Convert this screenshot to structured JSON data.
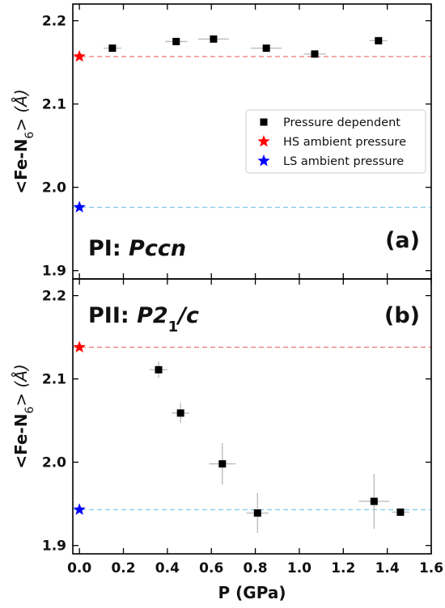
{
  "chart_data": [
    {
      "id": "a",
      "type": "scatter",
      "panel_label": "(a)",
      "phase_label": {
        "prefix": "PI: ",
        "space_group": "Pccn"
      },
      "ylabel": "<Fe-N6> (Å)",
      "ylim": [
        1.89,
        2.22
      ],
      "yticks": [
        1.9,
        2.0,
        2.1,
        2.2
      ],
      "ytick_labels": [
        "1.9",
        "2.0",
        "2.1",
        "2.2"
      ],
      "xlim": [
        -0.03,
        1.6
      ],
      "show_x_tick_labels": false,
      "series": [
        {
          "name": "Pressure dependent",
          "marker": "square",
          "color": "#000000",
          "points": [
            {
              "x": 0.15,
              "y": 2.167,
              "xerr": 0.04,
              "yerr": 0.004
            },
            {
              "x": 0.44,
              "y": 2.175,
              "xerr": 0.05,
              "yerr": 0.003
            },
            {
              "x": 0.61,
              "y": 2.178,
              "xerr": 0.07,
              "yerr": 0.003
            },
            {
              "x": 0.85,
              "y": 2.167,
              "xerr": 0.07,
              "yerr": 0.003
            },
            {
              "x": 1.07,
              "y": 2.16,
              "xerr": 0.05,
              "yerr": 0.004
            },
            {
              "x": 1.36,
              "y": 2.176,
              "xerr": 0.04,
              "yerr": 0.004
            }
          ]
        },
        {
          "name": "HS ambient pressure",
          "marker": "star",
          "color": "#ff0000",
          "x": 0.0,
          "y": 2.157,
          "line_color": "#f08080"
        },
        {
          "name": "LS ambient pressure",
          "marker": "star",
          "color": "#0000ff",
          "x": 0.0,
          "y": 1.976,
          "line_color": "#87ceeb"
        }
      ],
      "legend": {
        "position": "center-right",
        "entries": [
          "Pressure dependent",
          "HS ambient pressure",
          "LS ambient pressure"
        ]
      }
    },
    {
      "id": "b",
      "type": "scatter",
      "panel_label": "(b)",
      "phase_label": {
        "prefix": "PII: ",
        "space_group": "P2",
        "subscript": "1",
        "suffix": "/c"
      },
      "ylabel": "<Fe-N6> (Å)",
      "ylim": [
        1.89,
        2.22
      ],
      "yticks": [
        1.9,
        2.0,
        2.1,
        2.2
      ],
      "ytick_labels": [
        "1.9",
        "2.0",
        "2.1",
        "2.2"
      ],
      "xlabel": "P (GPa)",
      "xlim": [
        -0.03,
        1.6
      ],
      "xticks": [
        0.0,
        0.2,
        0.4,
        0.6,
        0.8,
        1.0,
        1.2,
        1.4,
        1.6
      ],
      "xtick_labels": [
        "0.0",
        "0.2",
        "0.4",
        "0.6",
        "0.8",
        "1.0",
        "1.2",
        "1.4",
        "1.6"
      ],
      "series": [
        {
          "name": "Pressure dependent",
          "marker": "square",
          "color": "#000000",
          "points": [
            {
              "x": 0.36,
              "y": 2.111,
              "xerr": 0.04,
              "yerr": 0.01
            },
            {
              "x": 0.46,
              "y": 2.059,
              "xerr": 0.04,
              "yerr": 0.012
            },
            {
              "x": 0.65,
              "y": 1.998,
              "xerr": 0.06,
              "yerr": 0.025
            },
            {
              "x": 0.81,
              "y": 1.939,
              "xerr": 0.05,
              "yerr": 0.024
            },
            {
              "x": 1.34,
              "y": 1.953,
              "xerr": 0.07,
              "yerr": 0.033
            },
            {
              "x": 1.46,
              "y": 1.94,
              "xerr": 0.04,
              "yerr": 0.003
            }
          ]
        },
        {
          "name": "HS ambient pressure",
          "marker": "star",
          "color": "#ff0000",
          "x": 0.0,
          "y": 2.138,
          "line_color": "#f08080"
        },
        {
          "name": "LS ambient pressure",
          "marker": "star",
          "color": "#0000ff",
          "x": 0.0,
          "y": 1.943,
          "line_color": "#87ceeb"
        }
      ]
    }
  ]
}
